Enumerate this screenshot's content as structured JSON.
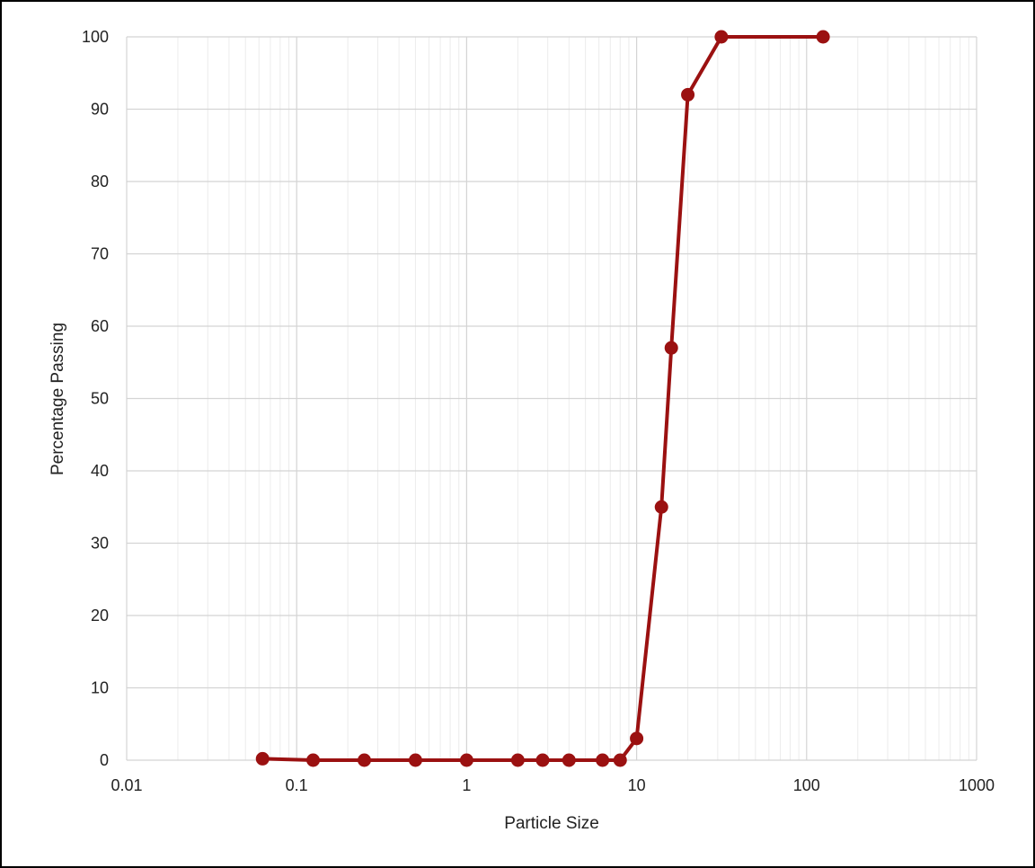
{
  "chart_data": {
    "type": "line",
    "title": "",
    "xlabel": "Particle Size",
    "ylabel": "Percentage Passing",
    "x_scale": "log",
    "xlim": [
      0.01,
      1000
    ],
    "ylim": [
      0,
      100
    ],
    "x_ticks": [
      0.01,
      0.1,
      1,
      10,
      100,
      1000
    ],
    "x_tick_labels": [
      "0.01",
      "0.1",
      "1",
      "10",
      "100",
      "1000"
    ],
    "y_ticks": [
      0,
      10,
      20,
      30,
      40,
      50,
      60,
      70,
      80,
      90,
      100
    ],
    "y_tick_labels": [
      "0",
      "10",
      "20",
      "30",
      "40",
      "50",
      "60",
      "70",
      "80",
      "90",
      "100"
    ],
    "grid": true,
    "legend": "none",
    "series": [
      {
        "color": "#9b1111",
        "marker": "circle",
        "x": [
          0.063,
          0.125,
          0.25,
          0.5,
          1,
          2,
          2.8,
          4,
          6.3,
          8,
          10,
          14,
          16,
          20,
          31.5,
          125
        ],
        "y": [
          0.2,
          0,
          0,
          0,
          0,
          0,
          0,
          0,
          0,
          0,
          3,
          35,
          57,
          92,
          100,
          100
        ]
      }
    ]
  }
}
